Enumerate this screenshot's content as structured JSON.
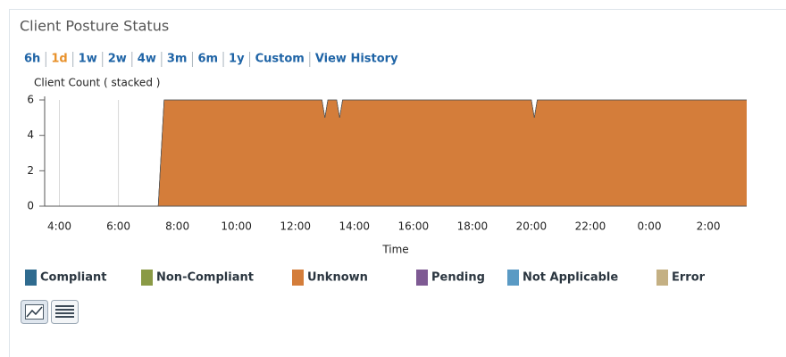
{
  "header": {
    "title": "Client Posture Status"
  },
  "time_ranges": [
    "6h",
    "1d",
    "1w",
    "2w",
    "4w",
    "3m",
    "6m",
    "1y",
    "Custom",
    "View History"
  ],
  "active_range_index": 1,
  "chart_data": {
    "type": "area",
    "stacked": true,
    "ylabel": "Client Count ( stacked )",
    "xlabel": "Time",
    "x": [
      3.5,
      7.35,
      7.55,
      12.9,
      13.0,
      13.1,
      13.4,
      13.5,
      13.6,
      20.0,
      20.1,
      20.2,
      27.3
    ],
    "xlim": [
      3.5,
      27.3
    ],
    "xticks": [
      {
        "value": 4,
        "label": "4:00"
      },
      {
        "value": 6,
        "label": "6:00"
      },
      {
        "value": 8,
        "label": "8:00"
      },
      {
        "value": 10,
        "label": "10:00"
      },
      {
        "value": 12,
        "label": "12:00"
      },
      {
        "value": 14,
        "label": "14:00"
      },
      {
        "value": 16,
        "label": "16:00"
      },
      {
        "value": 18,
        "label": "18:00"
      },
      {
        "value": 20,
        "label": "20:00"
      },
      {
        "value": 22,
        "label": "22:00"
      },
      {
        "value": 24,
        "label": "0:00"
      },
      {
        "value": 26,
        "label": "2:00"
      }
    ],
    "ylim": [
      0,
      6
    ],
    "yticks": [
      0,
      2,
      4,
      6
    ],
    "grid": true,
    "series": [
      {
        "name": "Compliant",
        "color": "#2f6b8f",
        "values": [
          0,
          0,
          0,
          0,
          0,
          0,
          0,
          0,
          0,
          0,
          0,
          0,
          0
        ]
      },
      {
        "name": "Non-Compliant",
        "color": "#8a9a45",
        "values": [
          0,
          0,
          0,
          0,
          0,
          0,
          0,
          0,
          0,
          0,
          0,
          0,
          0
        ]
      },
      {
        "name": "Unknown",
        "color": "#d47d3a",
        "values": [
          0,
          0,
          6,
          6,
          5,
          6,
          6,
          5,
          6,
          6,
          5,
          6,
          6
        ]
      },
      {
        "name": "Pending",
        "color": "#7e5a93",
        "values": [
          0,
          0,
          0,
          0,
          0,
          0,
          0,
          0,
          0,
          0,
          0,
          0,
          0
        ]
      },
      {
        "name": "Not Applicable",
        "color": "#5a9ac4",
        "values": [
          0,
          0,
          0,
          0,
          0,
          0,
          0,
          0,
          0,
          0,
          0,
          0,
          0
        ]
      },
      {
        "name": "Error",
        "color": "#c4b083",
        "values": [
          0,
          0,
          0,
          0,
          0,
          0,
          0,
          0,
          0,
          0,
          0,
          0,
          0
        ]
      }
    ]
  }
}
